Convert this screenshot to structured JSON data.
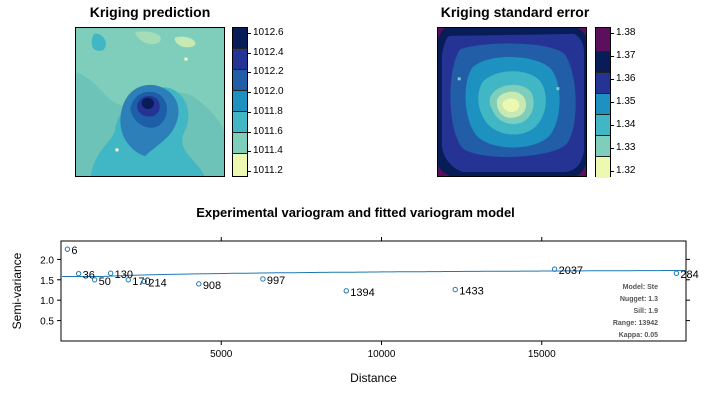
{
  "chart_data": [
    {
      "type": "heatmap",
      "title": "Kriging prediction",
      "legend_ticks": [
        "1012.6",
        "1012.4",
        "1012.2",
        "1012.0",
        "1011.8",
        "1011.6",
        "1011.4",
        "1011.2"
      ],
      "legend_range": [
        1011.2,
        1012.6
      ],
      "palette": [
        "#ffffcc",
        "#d9f0b3",
        "#a6dcb6",
        "#7ccbb5",
        "#41b6c4",
        "#2c94c0",
        "#225ea8",
        "#233c91",
        "#081d58"
      ],
      "legend_levels": 7
    },
    {
      "type": "heatmap",
      "title": "Kriging standard error",
      "legend_ticks": [
        "1.38",
        "1.37",
        "1.36",
        "1.35",
        "1.34",
        "1.33",
        "1.32"
      ],
      "legend_range": [
        1.32,
        1.385
      ],
      "palette": [
        "#edf8b1",
        "#c7e9b4",
        "#7fcdbb",
        "#41b6c4",
        "#1d91c0",
        "#225ea8",
        "#253494",
        "#081d58",
        "#5c0f5c"
      ]
    },
    {
      "type": "scatter",
      "title": "Experimental variogram and fitted variogram model",
      "xlabel": "Distance",
      "ylabel": "Semi-variance",
      "xlim": [
        0,
        19500
      ],
      "ylim": [
        0,
        2.45
      ],
      "x_ticks": [
        "5000",
        "10000",
        "15000"
      ],
      "y_ticks": [
        "0.5",
        "1.0",
        "1.5",
        "2.0"
      ],
      "points": [
        {
          "x": 200,
          "y": 2.25,
          "n": "6"
        },
        {
          "x": 550,
          "y": 1.65,
          "n": "36"
        },
        {
          "x": 1050,
          "y": 1.5,
          "n": "50"
        },
        {
          "x": 1550,
          "y": 1.66,
          "n": "130"
        },
        {
          "x": 2100,
          "y": 1.5,
          "n": "170"
        },
        {
          "x": 2600,
          "y": 1.46,
          "n": "214"
        },
        {
          "x": 4300,
          "y": 1.4,
          "n": "908"
        },
        {
          "x": 6300,
          "y": 1.52,
          "n": "997"
        },
        {
          "x": 8900,
          "y": 1.23,
          "n": "1394"
        },
        {
          "x": 12300,
          "y": 1.26,
          "n": "1433"
        },
        {
          "x": 15400,
          "y": 1.76,
          "n": "2037"
        },
        {
          "x": 19200,
          "y": 1.66,
          "n": "284"
        }
      ],
      "model": {
        "type": "Ste",
        "nugget": 1.3,
        "sill": 1.9,
        "range": 13942,
        "kappa": 0.05
      },
      "model_text": [
        "Model: Ste",
        "Nugget: 1.3",
        "Sill: 1.9",
        "Range: 13942",
        "Kappa: 0.05"
      ],
      "line_color": "#1f78b4",
      "point_color": "#1f78b4"
    }
  ]
}
